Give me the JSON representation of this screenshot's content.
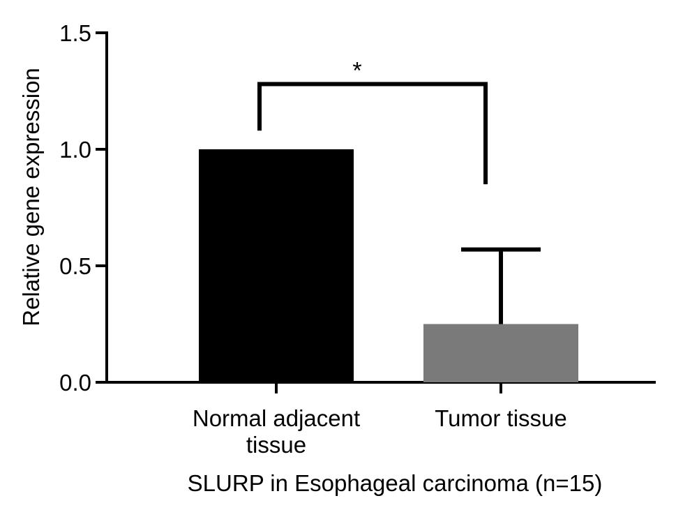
{
  "chart_data": {
    "type": "bar",
    "categories": [
      [
        "Normal adjacent",
        "tissue"
      ],
      [
        "Tumor tissue"
      ]
    ],
    "values": [
      1.0,
      0.25
    ],
    "error_upper": [
      0.0,
      0.57
    ],
    "bar_colors": [
      "#000000",
      "#7a7a7a"
    ],
    "ylabel": "Relative gene expression",
    "xlabel": "SLURP in Esophageal carcinoma (n=15)",
    "ylim": [
      0,
      1.5
    ],
    "yticks": [
      "0.0",
      "0.5",
      "1.0",
      "1.5"
    ],
    "ytick_values": [
      0,
      0.5,
      1.0,
      1.5
    ],
    "significance": {
      "label": "*",
      "bracket_top": 1.28,
      "left_end": 1.08,
      "right_end": 0.85
    },
    "grid": false,
    "legend": "none"
  }
}
